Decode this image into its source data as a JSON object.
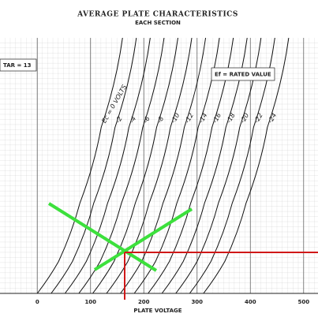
{
  "chart_data": {
    "type": "line",
    "title": "AVERAGE PLATE CHARACTERISTICS",
    "subtitle": "EACH SECTION",
    "annotations": [
      "TAR = 13",
      "Ef = RATED VALUE"
    ],
    "x_label": "PLATE VOLTAGE",
    "xlim": [
      -70,
      527
    ],
    "xticks": [
      0,
      100,
      200,
      300,
      400,
      500
    ],
    "ylim": [
      0,
      20
    ],
    "grid": true,
    "color": "#111111",
    "series": [
      {
        "name": "Ec = 0 VOLTS",
        "x": [
          0,
          40,
          80,
          120,
          160
        ],
        "values": [
          0,
          2.5,
          7.07,
          13,
          20
        ]
      },
      {
        "name": "-2",
        "x": [
          26,
          66,
          106,
          146,
          186
        ],
        "values": [
          0,
          2.5,
          7.07,
          13,
          20
        ]
      },
      {
        "name": "-4",
        "x": [
          52,
          92,
          132,
          172,
          212
        ],
        "values": [
          0,
          2.5,
          7.07,
          13,
          20
        ]
      },
      {
        "name": "-6",
        "x": [
          78,
          118,
          158,
          198,
          238
        ],
        "values": [
          0,
          2.5,
          7.07,
          13,
          20
        ]
      },
      {
        "name": "-8",
        "x": [
          104,
          144,
          184,
          224,
          264
        ],
        "values": [
          0,
          2.5,
          7.07,
          13,
          20
        ]
      },
      {
        "name": "-10",
        "x": [
          130,
          170,
          210,
          250,
          290
        ],
        "values": [
          0,
          2.5,
          7.07,
          13,
          20
        ]
      },
      {
        "name": "-12",
        "x": [
          156,
          196,
          236,
          276,
          316
        ],
        "values": [
          0,
          2.5,
          7.07,
          13,
          20
        ]
      },
      {
        "name": "-14",
        "x": [
          182,
          222,
          262,
          302,
          342
        ],
        "values": [
          0,
          2.5,
          7.07,
          13,
          20
        ]
      },
      {
        "name": "-16",
        "x": [
          208,
          248,
          288,
          328,
          368
        ],
        "values": [
          0,
          2.5,
          7.07,
          13,
          20
        ]
      },
      {
        "name": "-18",
        "x": [
          234,
          274,
          314,
          354,
          394
        ],
        "values": [
          0,
          2.5,
          7.07,
          13,
          20
        ]
      },
      {
        "name": "-20",
        "x": [
          260,
          300,
          340,
          380,
          420
        ],
        "values": [
          0,
          2.5,
          7.07,
          13,
          20
        ]
      },
      {
        "name": "-22",
        "x": [
          286,
          326,
          366,
          406,
          446
        ],
        "values": [
          0,
          2.5,
          7.07,
          13,
          20
        ]
      },
      {
        "name": "-24",
        "x": [
          312,
          352,
          392,
          432,
          472
        ],
        "values": [
          0,
          2.5,
          7.07,
          13,
          20
        ]
      }
    ]
  }
}
